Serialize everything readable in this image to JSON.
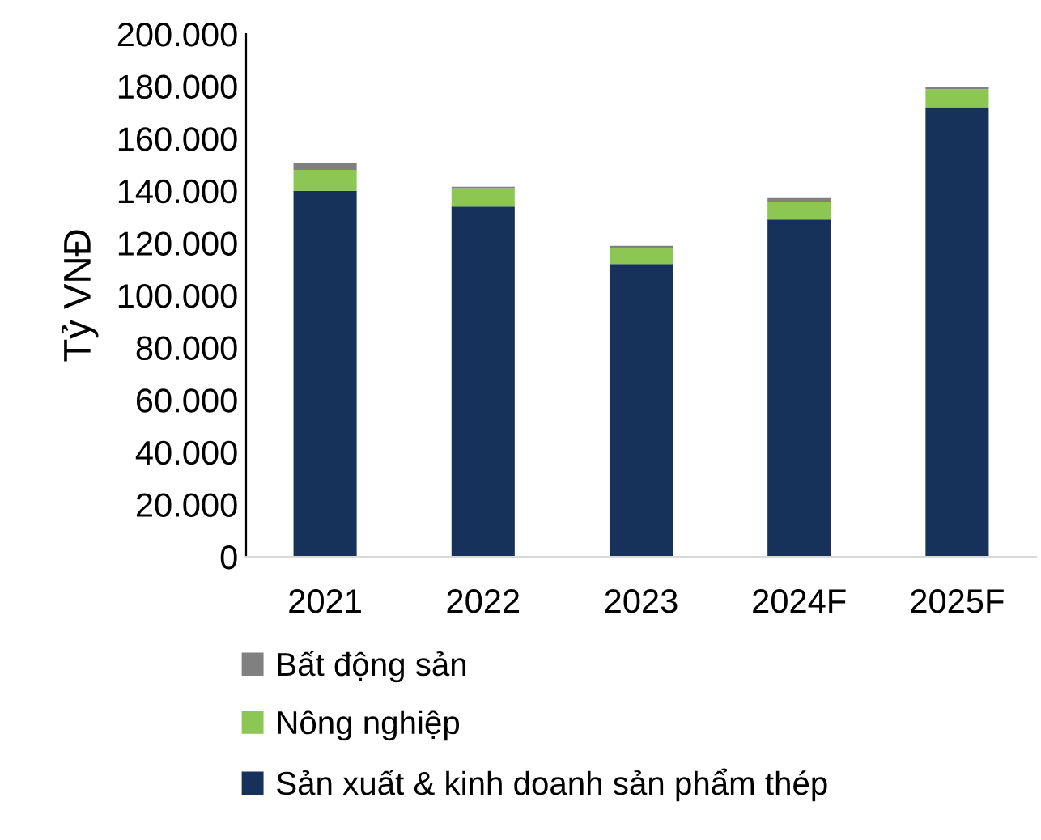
{
  "chart_data": {
    "type": "bar",
    "stacked": true,
    "ylabel": "Tỷ VNĐ",
    "categories": [
      "2021",
      "2022",
      "2023",
      "2024F",
      "2025F"
    ],
    "series": [
      {
        "name": "Sản xuất & kinh doanh sản phẩm thép",
        "color": "#17325a",
        "values": [
          140000,
          134000,
          112000,
          129000,
          172000
        ]
      },
      {
        "name": "Nông nghiệp",
        "color": "#8cc653",
        "values": [
          8000,
          7000,
          6200,
          6800,
          6900
        ]
      },
      {
        "name": "Bất động sản",
        "color": "#808080",
        "values": [
          2500,
          600,
          800,
          1400,
          800
        ]
      }
    ],
    "ylim": [
      0,
      200000
    ],
    "yticks": [
      {
        "value": 0,
        "label": "0"
      },
      {
        "value": 20000,
        "label": "20.000"
      },
      {
        "value": 40000,
        "label": "40.000"
      },
      {
        "value": 60000,
        "label": "60.000"
      },
      {
        "value": 80000,
        "label": "80.000"
      },
      {
        "value": 100000,
        "label": "100.000"
      },
      {
        "value": 120000,
        "label": "120.000"
      },
      {
        "value": 140000,
        "label": "140.000"
      },
      {
        "value": 160000,
        "label": "160.000"
      },
      {
        "value": 180000,
        "label": "180.000"
      },
      {
        "value": 200000,
        "label": "200.000"
      }
    ],
    "grid": false,
    "legend": "bottom"
  }
}
